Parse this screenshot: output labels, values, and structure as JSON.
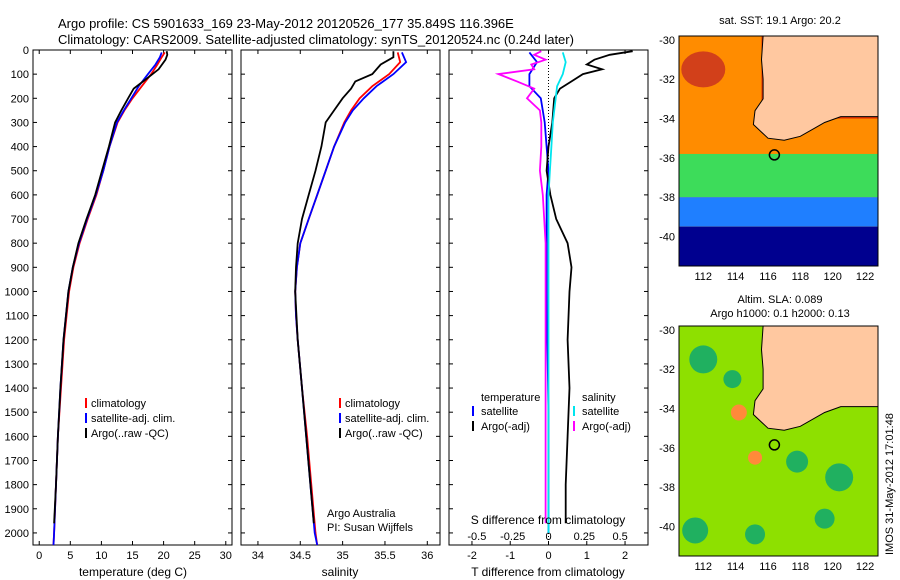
{
  "header": {
    "line1": "Argo profile: CS 5901633_169 23-May-2012 20120526_177 35.849S 116.396E",
    "line2": "Climatology: CARS2009. Satellite-adjusted climatology: synTS_20120524.nc (0.24d later)"
  },
  "colors": {
    "clim": "#ff0000",
    "sat": "#0000ff",
    "argo": "#000000",
    "sat_sal": "#00e5ee",
    "argo_sal": "#ff00ff"
  },
  "chart_data": [
    {
      "type": "line",
      "id": "temperature",
      "xlabel": "temperature (deg C)",
      "ylabel": "",
      "xlim": [
        -1,
        31
      ],
      "ylim": [
        2050,
        0
      ],
      "xticks": [
        0,
        5,
        10,
        15,
        20,
        25,
        30
      ],
      "yticks": [
        0,
        100,
        200,
        300,
        400,
        500,
        600,
        700,
        800,
        900,
        1000,
        1100,
        1200,
        1300,
        1400,
        1500,
        1600,
        1700,
        1800,
        1900,
        2000
      ],
      "legend": [
        "climatology",
        "satellite-adj. clim.",
        "Argo(..raw -QC)"
      ],
      "legend_position": "lower-center",
      "series": [
        {
          "name": "climatology",
          "color": "clim",
          "depth": [
            10,
            30,
            60,
            100,
            150,
            200,
            250,
            300,
            400,
            500,
            600,
            700,
            800,
            900,
            1000,
            1200,
            1400,
            1600,
            1800,
            2000,
            2050
          ],
          "values": [
            20.2,
            19.7,
            19,
            18,
            16.5,
            15,
            13.7,
            12.6,
            11.3,
            10.3,
            9.2,
            7.8,
            6.5,
            5.5,
            4.8,
            4,
            3.5,
            3,
            2.7,
            2.4,
            2.3
          ]
        },
        {
          "name": "satellite-adj. clim.",
          "color": "sat",
          "depth": [
            10,
            30,
            60,
            100,
            150,
            200,
            250,
            300,
            400,
            500,
            600,
            700,
            800,
            900,
            1000,
            1200,
            1400,
            1600,
            1800,
            2000,
            2050
          ],
          "values": [
            19.7,
            19.4,
            18.7,
            17.5,
            16,
            14.8,
            13.6,
            12.5,
            11.3,
            10.3,
            9.1,
            7.7,
            6.4,
            5.4,
            4.7,
            3.9,
            3.4,
            3,
            2.7,
            2.4,
            2.3
          ]
        },
        {
          "name": "Argo(..raw -QC)",
          "color": "argo",
          "depth": [
            5,
            20,
            40,
            80,
            120,
            160,
            200,
            250,
            300,
            400,
            500,
            600,
            700,
            800,
            900,
            1000,
            1200,
            1400,
            1600,
            1800,
            1960
          ],
          "values": [
            20.5,
            20.6,
            20.3,
            19.2,
            17.2,
            15.2,
            14.3,
            13.2,
            12.2,
            11.2,
            10.1,
            9,
            7.6,
            6.3,
            5.4,
            4.7,
            3.9,
            3.4,
            3,
            2.7,
            2.4
          ]
        }
      ]
    },
    {
      "type": "line",
      "id": "salinity",
      "xlabel": "salinity",
      "ylabel": "",
      "xlim": [
        33.8,
        36.15
      ],
      "ylim": [
        2050,
        0
      ],
      "xticks": [
        34,
        34.5,
        35,
        35.5,
        36
      ],
      "legend": [
        "climatology",
        "satellite-adj. clim.",
        "Argo(..raw -QC)"
      ],
      "legend_position": "lower-center",
      "annotation": [
        "Argo Australia",
        "PI: Susan Wijffels"
      ],
      "series": [
        {
          "name": "climatology",
          "color": "clim",
          "depth": [
            10,
            50,
            100,
            150,
            200,
            250,
            300,
            400,
            500,
            600,
            700,
            800,
            900,
            1000,
            1100,
            1200,
            1400,
            1600,
            1800,
            2000,
            2050
          ],
          "values": [
            35.65,
            35.68,
            35.55,
            35.35,
            35.2,
            35.1,
            35.02,
            34.9,
            34.8,
            34.7,
            34.6,
            34.5,
            34.46,
            34.44,
            34.45,
            34.47,
            34.52,
            34.58,
            34.63,
            34.68,
            34.7
          ]
        },
        {
          "name": "satellite-adj. clim.",
          "color": "sat",
          "depth": [
            10,
            50,
            100,
            150,
            200,
            250,
            300,
            400,
            500,
            600,
            700,
            800,
            900,
            1000,
            1100,
            1200,
            1400,
            1600,
            1800,
            2000,
            2050
          ],
          "values": [
            35.7,
            35.75,
            35.6,
            35.4,
            35.25,
            35.12,
            35.03,
            34.9,
            34.8,
            34.7,
            34.6,
            34.5,
            34.46,
            34.44,
            34.45,
            34.47,
            34.52,
            34.57,
            34.62,
            34.67,
            34.7
          ]
        },
        {
          "name": "Argo(..raw -QC)",
          "color": "argo",
          "depth": [
            5,
            30,
            60,
            100,
            130,
            160,
            200,
            250,
            300,
            400,
            500,
            600,
            700,
            800,
            900,
            1000,
            1200,
            1400,
            1600,
            1800,
            1960
          ],
          "values": [
            35.6,
            35.6,
            35.45,
            35.35,
            35.15,
            35.1,
            35.0,
            34.9,
            34.8,
            34.75,
            34.68,
            34.6,
            34.52,
            34.47,
            34.45,
            34.44,
            34.47,
            34.52,
            34.57,
            34.62,
            34.66
          ]
        }
      ]
    },
    {
      "type": "line",
      "id": "differences",
      "xlabel": "T difference from climatology",
      "xlabel_top": "S difference from climatology",
      "xlim": [
        -2.6,
        2.6
      ],
      "ylim": [
        2050,
        0
      ],
      "xticks": [
        -2,
        -1,
        0,
        1,
        2
      ],
      "xticks_top": [
        -0.5,
        -0.25,
        0,
        0.25,
        0.5
      ],
      "legend": [
        "temperature",
        "satellite",
        "Argo(-adj)",
        "salinity",
        "satellite",
        "Argo(-adj)"
      ],
      "legend_position": "lower-center",
      "series": [
        {
          "name": "T satellite",
          "color": "sat",
          "depth": [
            10,
            50,
            100,
            150,
            200,
            300,
            400,
            500,
            600,
            700,
            800,
            900,
            1000,
            1500,
            2000
          ],
          "values": [
            -0.5,
            -0.3,
            -0.5,
            -0.5,
            -0.2,
            -0.1,
            -0.05,
            0,
            -0.05,
            -0.05,
            -0.05,
            -0.05,
            -0.05,
            0,
            0
          ]
        },
        {
          "name": "T Argo(-adj)",
          "color": "argo",
          "depth": [
            5,
            20,
            40,
            60,
            80,
            100,
            130,
            160,
            200,
            300,
            400,
            500,
            600,
            700,
            800,
            900,
            1000,
            1200,
            1400,
            1600,
            1800,
            1960
          ],
          "values": [
            2.2,
            1.6,
            1.2,
            1.0,
            1.4,
            0.9,
            0.6,
            0.3,
            0.15,
            0.1,
            0,
            -0.05,
            0.05,
            0.2,
            0.5,
            0.6,
            0.55,
            0.5,
            0.55,
            0.5,
            0.45,
            0.45
          ]
        },
        {
          "name": "S satellite",
          "color": "sat_sal",
          "depth": [
            10,
            50,
            100,
            150,
            200,
            300,
            400,
            500,
            600,
            800,
            1000,
            1500,
            2000
          ],
          "values": [
            0.1,
            0.12,
            0.1,
            0.06,
            0.05,
            0.03,
            0.02,
            0.01,
            0,
            0,
            0,
            0,
            0
          ]
        },
        {
          "name": "S Argo(-adj)",
          "color": "argo_sal",
          "depth": [
            5,
            20,
            40,
            60,
            80,
            100,
            130,
            160,
            200,
            250,
            300,
            400,
            500,
            600,
            700,
            800,
            1000,
            1200,
            1500,
            1800,
            1960
          ],
          "values": [
            -0.05,
            -0.1,
            -0.02,
            -0.12,
            -0.1,
            -0.35,
            -0.22,
            -0.1,
            -0.15,
            -0.06,
            -0.05,
            -0.05,
            -0.06,
            -0.04,
            -0.03,
            -0.02,
            -0.02,
            -0.02,
            -0.02,
            -0.02,
            -0.02
          ]
        }
      ]
    },
    {
      "type": "heatmap",
      "id": "sst-map",
      "title": "sat. SST: 19.1 Argo: 20.2",
      "xlim": [
        110.5,
        122.8
      ],
      "ylim": [
        -41.5,
        -29.8
      ],
      "xticks": [
        112,
        114,
        116,
        118,
        120,
        122
      ],
      "yticks": [
        -30,
        -32,
        -34,
        -36,
        -38,
        -40
      ],
      "argo_position": {
        "lon": 116.396,
        "lat": -35.849
      }
    },
    {
      "type": "heatmap",
      "id": "sla-map",
      "title": "Altim. SLA: 0.089",
      "subtitle": "Argo h1000: 0.1 h2000: 0.13",
      "xlim": [
        110.5,
        122.8
      ],
      "ylim": [
        -41.5,
        -29.8
      ],
      "xticks": [
        112,
        114,
        116,
        118,
        120,
        122
      ],
      "yticks": [
        -30,
        -32,
        -34,
        -36,
        -38,
        -40
      ],
      "argo_position": {
        "lon": 116.396,
        "lat": -35.849
      }
    }
  ],
  "watermark": "IMOS 31-May-2012 17:01:48"
}
